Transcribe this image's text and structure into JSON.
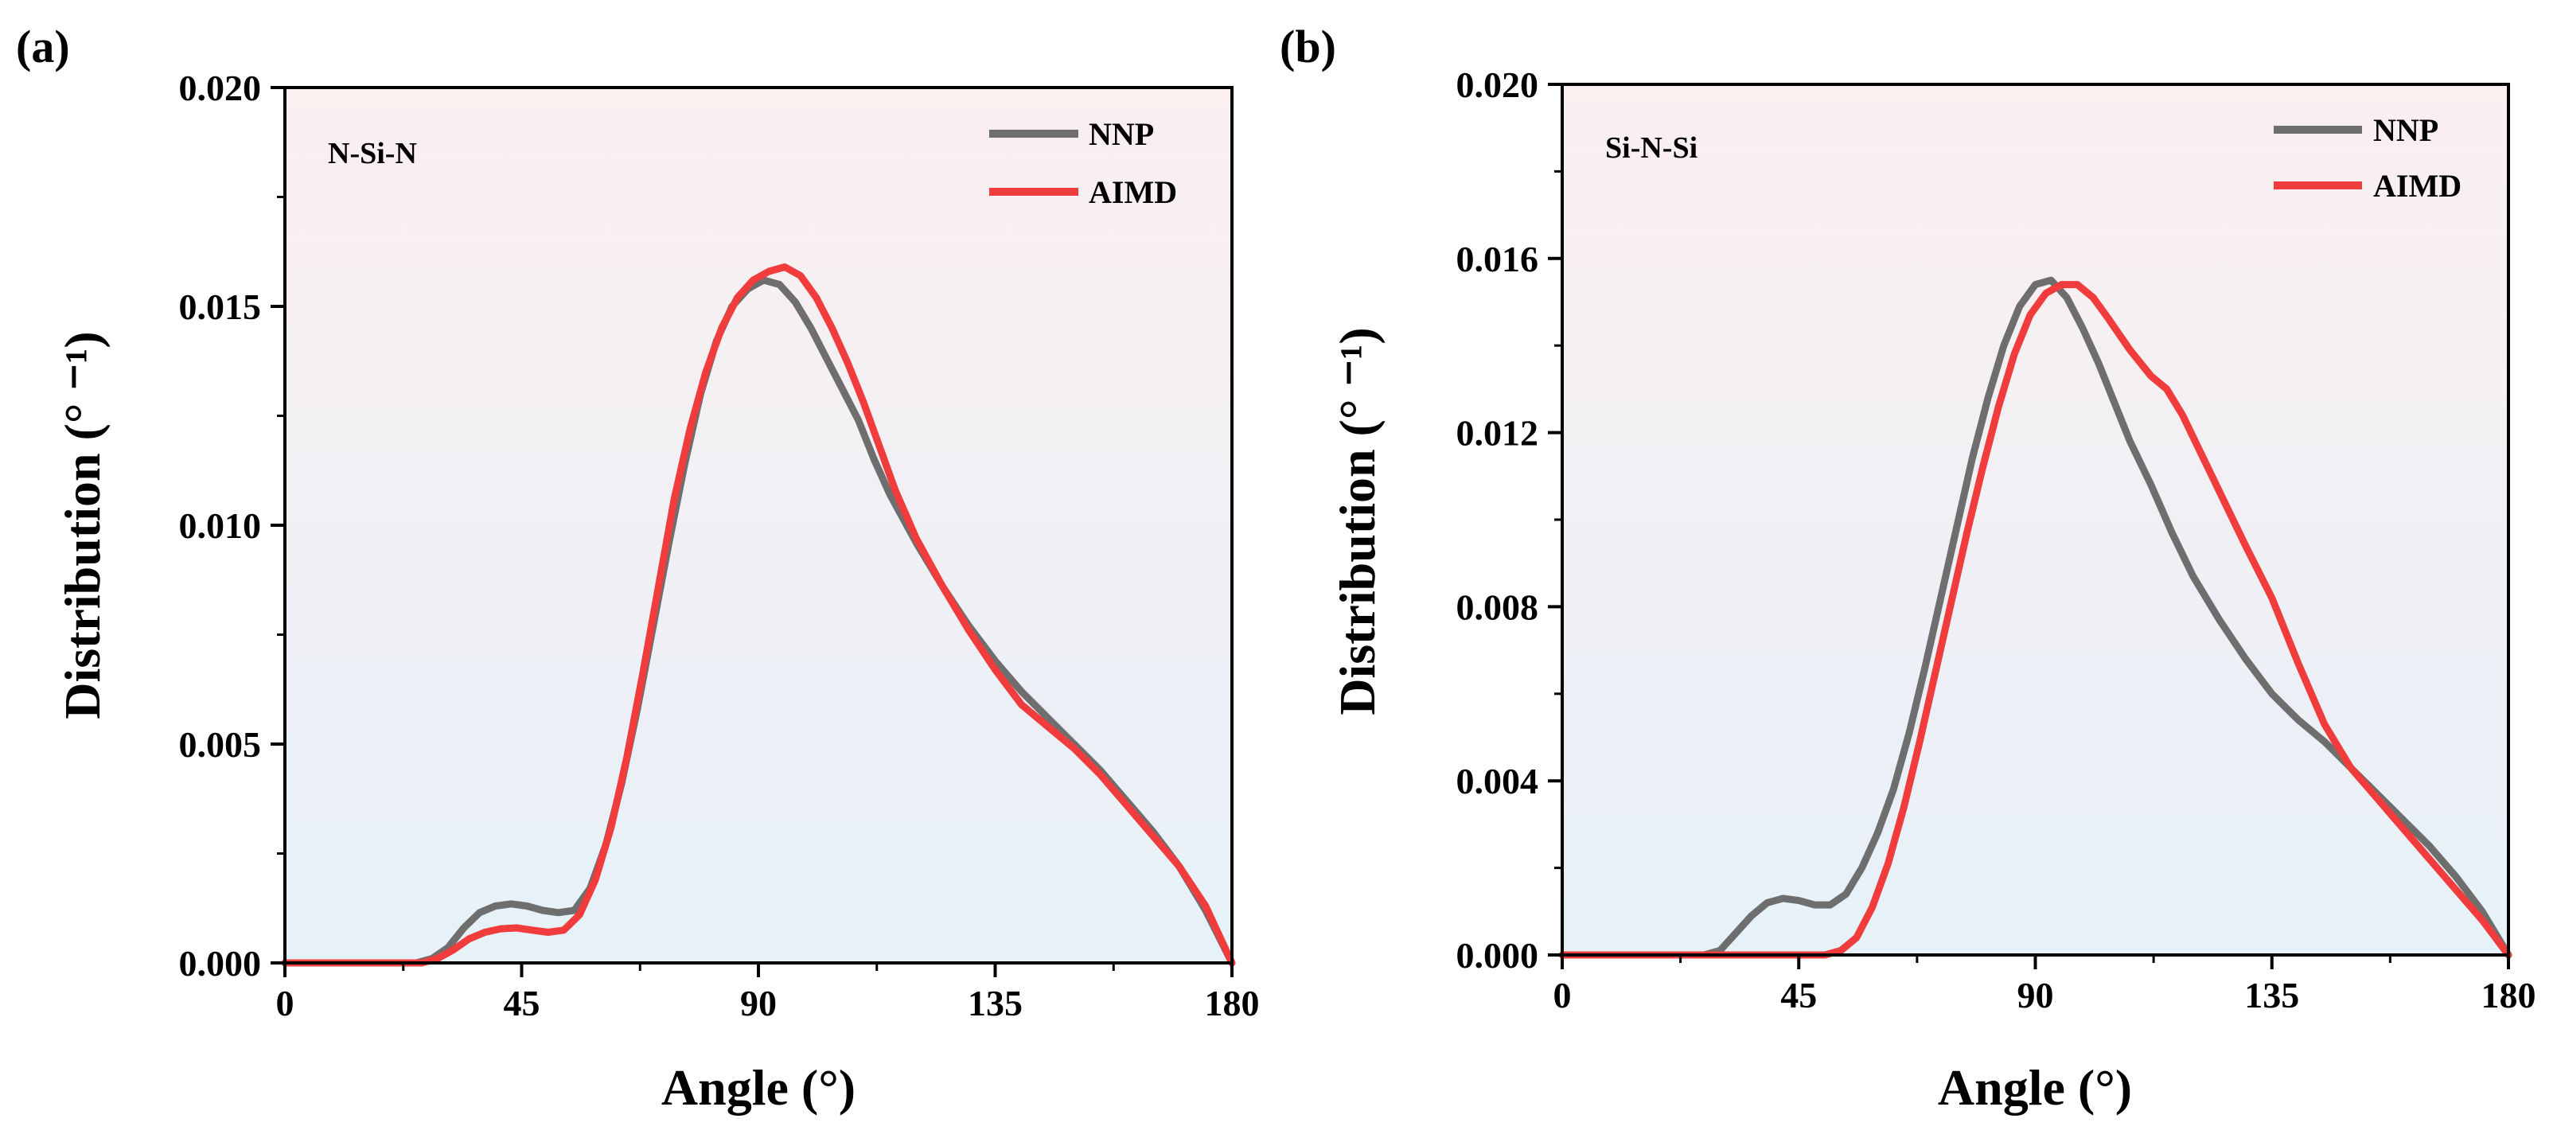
{
  "chart_data": [
    {
      "type": "line",
      "panel_label": "(a)",
      "annotation": "N-Si-N",
      "xlabel": "Angle (°)",
      "ylabel": "Distribution (° ⁻¹)",
      "xlim": [
        0,
        180
      ],
      "ylim": [
        0,
        0.02
      ],
      "xticks": [
        "0",
        "45",
        "90",
        "135",
        "180"
      ],
      "yticks": [
        "0.000",
        "0.005",
        "0.010",
        "0.015",
        "0.020"
      ],
      "legend": [
        "NNP",
        "AIMD"
      ],
      "legend_position": "top-right",
      "series": [
        {
          "name": "NNP",
          "color": "#6e6e6e",
          "points": [
            [
              0,
              0
            ],
            [
              25,
              0
            ],
            [
              28,
              0.0001
            ],
            [
              31,
              0.00035
            ],
            [
              34,
              0.0008
            ],
            [
              37,
              0.00115
            ],
            [
              40,
              0.0013
            ],
            [
              43,
              0.00135
            ],
            [
              46,
              0.0013
            ],
            [
              49,
              0.0012
            ],
            [
              52,
              0.00115
            ],
            [
              55,
              0.0012
            ],
            [
              58,
              0.0017
            ],
            [
              61,
              0.0027
            ],
            [
              64,
              0.0041
            ],
            [
              67,
              0.0058
            ],
            [
              70,
              0.0077
            ],
            [
              73,
              0.0096
            ],
            [
              76,
              0.0114
            ],
            [
              79,
              0.013
            ],
            [
              82,
              0.0142
            ],
            [
              85,
              0.015
            ],
            [
              88,
              0.0154
            ],
            [
              91,
              0.0156
            ],
            [
              94,
              0.0155
            ],
            [
              97,
              0.0151
            ],
            [
              100,
              0.0145
            ],
            [
              103,
              0.0138
            ],
            [
              106,
              0.0131
            ],
            [
              109,
              0.0124
            ],
            [
              112,
              0.0115
            ],
            [
              115,
              0.0107
            ],
            [
              120,
              0.0096
            ],
            [
              125,
              0.0086
            ],
            [
              130,
              0.0077
            ],
            [
              135,
              0.0069
            ],
            [
              140,
              0.0062
            ],
            [
              145,
              0.0056
            ],
            [
              150,
              0.005
            ],
            [
              155,
              0.0044
            ],
            [
              160,
              0.0037
            ],
            [
              165,
              0.003
            ],
            [
              170,
              0.0022
            ],
            [
              175,
              0.0012
            ],
            [
              180,
              0.0
            ]
          ]
        },
        {
          "name": "AIMD",
          "color": "#f03c3c",
          "points": [
            [
              0,
              0
            ],
            [
              26,
              0
            ],
            [
              29,
              0.0001
            ],
            [
              32,
              0.0003
            ],
            [
              35,
              0.00055
            ],
            [
              38,
              0.0007
            ],
            [
              41,
              0.00078
            ],
            [
              44,
              0.0008
            ],
            [
              47,
              0.00075
            ],
            [
              50,
              0.0007
            ],
            [
              53,
              0.00075
            ],
            [
              56,
              0.0011
            ],
            [
              59,
              0.0019
            ],
            [
              62,
              0.0031
            ],
            [
              65,
              0.0047
            ],
            [
              68,
              0.0066
            ],
            [
              71,
              0.0086
            ],
            [
              74,
              0.0106
            ],
            [
              77,
              0.0122
            ],
            [
              80,
              0.0135
            ],
            [
              83,
              0.0145
            ],
            [
              86,
              0.0152
            ],
            [
              89,
              0.0156
            ],
            [
              92,
              0.0158
            ],
            [
              95,
              0.0159
            ],
            [
              98,
              0.0157
            ],
            [
              101,
              0.0152
            ],
            [
              104,
              0.0145
            ],
            [
              107,
              0.0137
            ],
            [
              110,
              0.0128
            ],
            [
              113,
              0.0118
            ],
            [
              116,
              0.0108
            ],
            [
              120,
              0.0097
            ],
            [
              125,
              0.0086
            ],
            [
              130,
              0.0076
            ],
            [
              135,
              0.0067
            ],
            [
              140,
              0.0059
            ],
            [
              145,
              0.0054
            ],
            [
              150,
              0.0049
            ],
            [
              155,
              0.0043
            ],
            [
              160,
              0.0036
            ],
            [
              165,
              0.0029
            ],
            [
              170,
              0.0022
            ],
            [
              175,
              0.0013
            ],
            [
              180,
              0.0
            ]
          ]
        }
      ]
    },
    {
      "type": "line",
      "panel_label": "(b)",
      "annotation": "Si-N-Si",
      "xlabel": "Angle (°)",
      "ylabel": "Distribution (° ⁻¹)",
      "xlim": [
        0,
        180
      ],
      "ylim": [
        0,
        0.02
      ],
      "xticks": [
        "0",
        "45",
        "90",
        "135",
        "180"
      ],
      "yticks": [
        "0.000",
        "0.004",
        "0.008",
        "0.012",
        "0.016",
        "0.020"
      ],
      "legend": [
        "NNP",
        "AIMD"
      ],
      "legend_position": "top-right",
      "series": [
        {
          "name": "NNP",
          "color": "#6e6e6e",
          "points": [
            [
              0,
              0
            ],
            [
              27,
              0
            ],
            [
              30,
              0.0001
            ],
            [
              33,
              0.0005
            ],
            [
              36,
              0.0009
            ],
            [
              39,
              0.0012
            ],
            [
              42,
              0.0013
            ],
            [
              45,
              0.00125
            ],
            [
              48,
              0.00115
            ],
            [
              51,
              0.00115
            ],
            [
              54,
              0.0014
            ],
            [
              57,
              0.002
            ],
            [
              60,
              0.0028
            ],
            [
              63,
              0.0038
            ],
            [
              66,
              0.0051
            ],
            [
              69,
              0.0066
            ],
            [
              72,
              0.0082
            ],
            [
              75,
              0.0098
            ],
            [
              78,
              0.0114
            ],
            [
              81,
              0.0128
            ],
            [
              84,
              0.014
            ],
            [
              87,
              0.0149
            ],
            [
              90,
              0.0154
            ],
            [
              93,
              0.0155
            ],
            [
              96,
              0.0151
            ],
            [
              99,
              0.0144
            ],
            [
              102,
              0.0136
            ],
            [
              105,
              0.0127
            ],
            [
              108,
              0.0118
            ],
            [
              112,
              0.0108
            ],
            [
              116,
              0.0097
            ],
            [
              120,
              0.0087
            ],
            [
              125,
              0.0077
            ],
            [
              130,
              0.0068
            ],
            [
              135,
              0.006
            ],
            [
              140,
              0.0054
            ],
            [
              145,
              0.0049
            ],
            [
              150,
              0.0043
            ],
            [
              155,
              0.0037
            ],
            [
              160,
              0.0031
            ],
            [
              165,
              0.0025
            ],
            [
              170,
              0.0018
            ],
            [
              175,
              0.001
            ],
            [
              180,
              0.0
            ]
          ]
        },
        {
          "name": "AIMD",
          "color": "#f03c3c",
          "points": [
            [
              0,
              0
            ],
            [
              50,
              0
            ],
            [
              53,
              0.0001
            ],
            [
              56,
              0.0004
            ],
            [
              59,
              0.0011
            ],
            [
              62,
              0.0021
            ],
            [
              65,
              0.0034
            ],
            [
              68,
              0.0049
            ],
            [
              71,
              0.0065
            ],
            [
              74,
              0.0081
            ],
            [
              77,
              0.0097
            ],
            [
              80,
              0.0112
            ],
            [
              83,
              0.0126
            ],
            [
              86,
              0.0138
            ],
            [
              89,
              0.0147
            ],
            [
              92,
              0.0152
            ],
            [
              95,
              0.0154
            ],
            [
              98,
              0.0154
            ],
            [
              101,
              0.0151
            ],
            [
              104,
              0.0146
            ],
            [
              108,
              0.0139
            ],
            [
              112,
              0.0133
            ],
            [
              115,
              0.013
            ],
            [
              118,
              0.0124
            ],
            [
              122,
              0.0114
            ],
            [
              126,
              0.0104
            ],
            [
              130,
              0.0094
            ],
            [
              135,
              0.0082
            ],
            [
              140,
              0.0067
            ],
            [
              145,
              0.0053
            ],
            [
              150,
              0.0043
            ],
            [
              155,
              0.0036
            ],
            [
              160,
              0.0029
            ],
            [
              165,
              0.0022
            ],
            [
              170,
              0.0015
            ],
            [
              175,
              0.0008
            ],
            [
              180,
              0.0
            ]
          ]
        }
      ]
    }
  ]
}
